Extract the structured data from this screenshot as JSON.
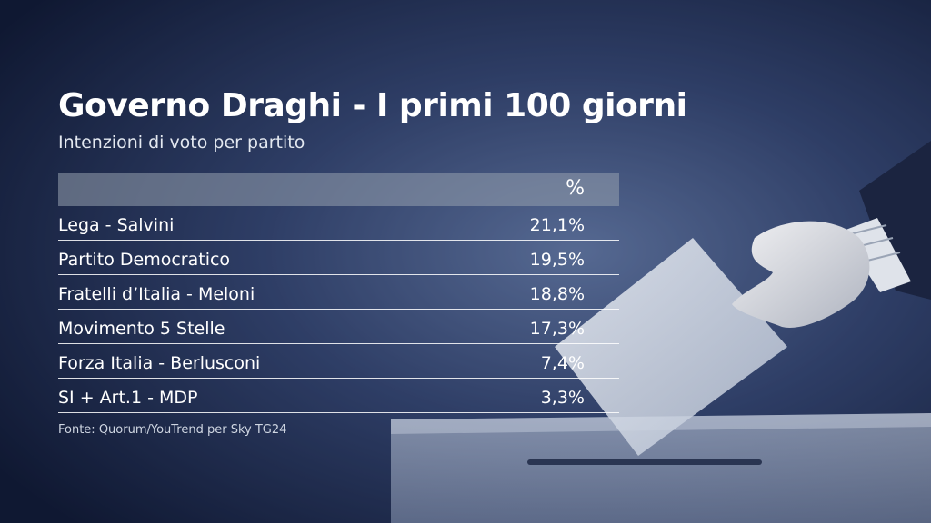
{
  "title": "Governo Draghi - I primi 100 giorni",
  "subtitle": "Intenzioni di voto per partito",
  "source": "Fonte: Quorum/YouTrend per Sky TG24",
  "chart_data": {
    "type": "table",
    "title": "Governo Draghi - I primi 100 giorni",
    "subtitle": "Intenzioni di voto per partito",
    "columns": [
      "",
      "%"
    ],
    "rows": [
      {
        "party": "Lega - Salvini",
        "value": "21,1%"
      },
      {
        "party": "Partito Democratico",
        "value": "19,5%"
      },
      {
        "party": "Fratelli d’Italia - Meloni",
        "value": "18,8%"
      },
      {
        "party": "Movimento 5 Stelle",
        "value": "17,3%"
      },
      {
        "party": "Forza Italia - Berlusconi",
        "value": "7,4%"
      },
      {
        "party": "SI + Art.1 - MDP",
        "value": "3,3%"
      }
    ]
  }
}
